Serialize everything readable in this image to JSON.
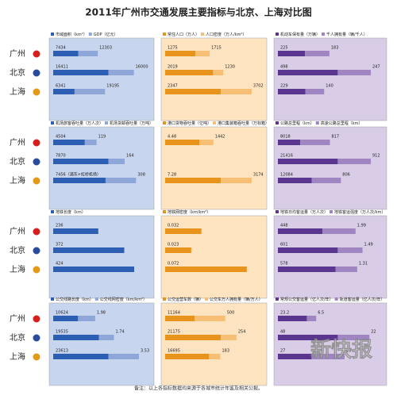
{
  "title": "2011年广州市交通发展主要指标与北京、上海对比图",
  "cities": [
    "广州",
    "北京",
    "上海"
  ],
  "panels": [
    {
      "legend": [
        "市域面积（km²）",
        "GDP（亿元）"
      ],
      "series": [
        {
          "values": [
            7434,
            16411,
            6341
          ]
        },
        {
          "values": [
            12303,
            16000,
            19195
          ]
        }
      ]
    },
    {
      "legend": [
        "常住人口（万人）",
        "人口密度（万人/km²）"
      ],
      "series": [
        {
          "values": [
            1275,
            2019,
            2347
          ]
        },
        {
          "values": [
            1715,
            1230,
            3702
          ]
        }
      ]
    },
    {
      "legend": [
        "机动车保有量（万辆）",
        "千人拥有量（辆/千人）"
      ],
      "series": [
        {
          "values": [
            225,
            498,
            229
          ]
        },
        {
          "values": [
            183,
            247,
            140
          ]
        }
      ]
    },
    {
      "legend": [
        "机场旅客吞吐量（万人次）",
        "机场货邮吞吐量（万吨）"
      ],
      "series": [
        {
          "values": [
            4504,
            7870,
            7456
          ],
          "value_labels": [
            "4504",
            "7870",
            "7456（浦东+虹桥机场）"
          ]
        },
        {
          "values": [
            119,
            164,
            308
          ]
        }
      ]
    },
    {
      "legend": [
        "港口货物吞吐量（亿吨）",
        "港口集装箱吞吐量（万标箱）"
      ],
      "series": [
        {
          "values": [
            4.48,
            null,
            7.28
          ],
          "value_labels": [
            "4.48",
            null,
            "7.28"
          ]
        },
        {
          "values": [
            1442,
            null,
            3174
          ]
        }
      ]
    },
    {
      "legend": [
        "公路总里程（km）",
        "高速公路总里程（km）"
      ],
      "series": [
        {
          "values": [
            8018,
            21416,
            12084
          ]
        },
        {
          "values": [
            817,
            912,
            806
          ]
        }
      ]
    },
    {
      "legend": [
        "地铁长度（km）"
      ],
      "series": [
        {
          "values": [
            236,
            372,
            424
          ]
        }
      ]
    },
    {
      "legend": [
        "地铁网密度（km/km²）"
      ],
      "series": [
        {
          "values": [
            0.032,
            0.023,
            0.072
          ]
        }
      ]
    },
    {
      "legend": [
        "地铁日均客运量（万人次）",
        "地铁客运强度（万人次/km）"
      ],
      "series": [
        {
          "values": [
            448,
            601,
            578
          ]
        },
        {
          "values": [
            1.99,
            1.49,
            1.31
          ]
        }
      ]
    },
    {
      "legend": [
        "公交线路长度（km）",
        "公交线网密度（km/km²）"
      ],
      "series": [
        {
          "values": [
            10624,
            19535,
            23613
          ]
        },
        {
          "values": [
            1.98,
            1.74,
            3.53
          ]
        }
      ]
    },
    {
      "legend": [
        "公交运营车数（辆）",
        "公交车万人拥有量（辆/万人）"
      ],
      "series": [
        {
          "values": [
            11164,
            21175,
            16695
          ]
        },
        {
          "values": [
            500,
            254,
            183
          ]
        }
      ]
    },
    {
      "legend": [
        "常规公交客运量（亿人次/年）",
        "轨道客运量（亿人次/年）"
      ],
      "series": [
        {
          "values": [
            23.2,
            48,
            27
          ]
        },
        {
          "values": [
            6.5,
            22,
            23
          ]
        }
      ]
    }
  ],
  "note": "备注：以上各指标数据均来源于各城市统计年鉴及相关公报。",
  "watermark": "新快报"
}
